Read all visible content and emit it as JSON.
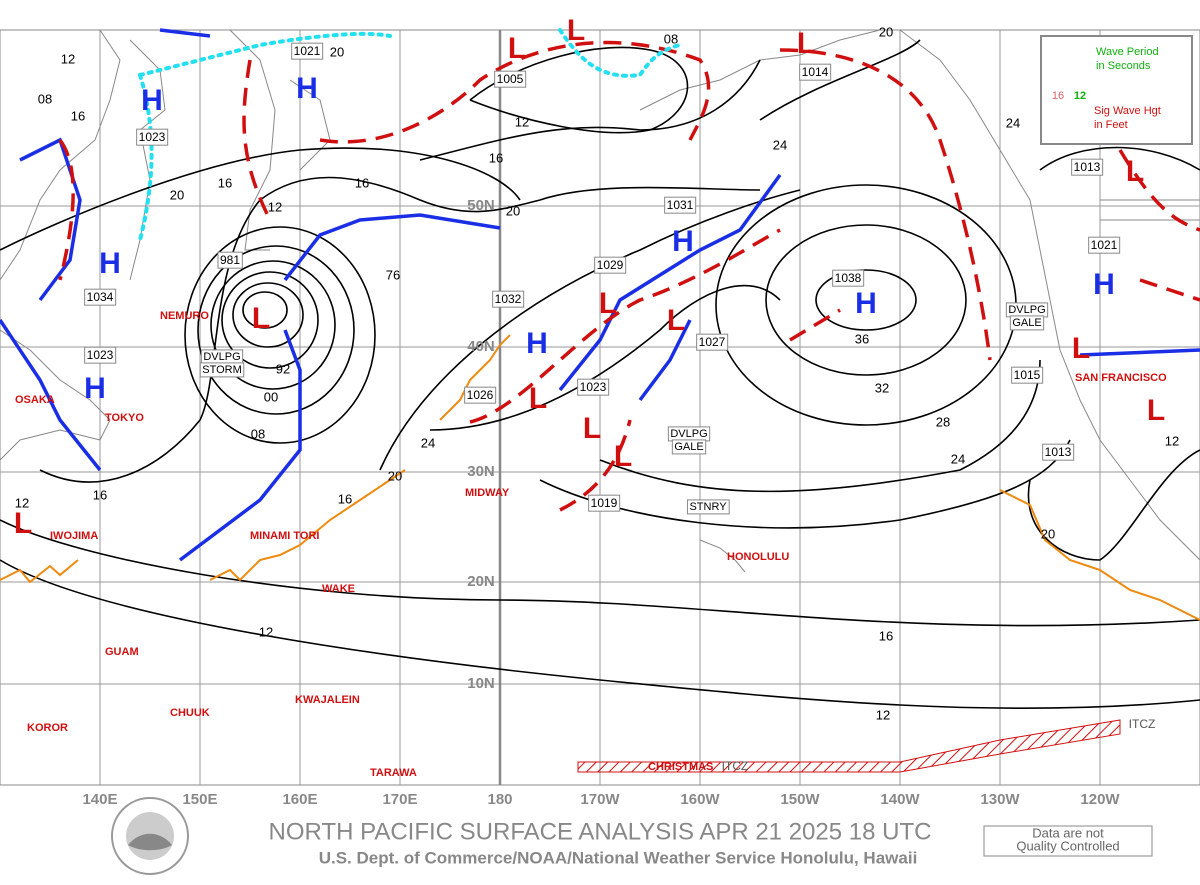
{
  "title": "NORTH PACIFIC SURFACE ANALYSIS APR 21 2025 18 UTC",
  "subtitle": "U.S. Dept. of Commerce/NOAA/National Weather Service Honolulu, Hawaii",
  "disclaimer": [
    "Data are not",
    "Quality Controlled"
  ],
  "legend": {
    "period_text": [
      "Wave Period",
      "in Seconds"
    ],
    "height_text": [
      "Sig Wave Hgt",
      "in Feet"
    ],
    "sample_height": 16,
    "sample_period": 12
  },
  "longitudes": [
    "140E",
    "150E",
    "160E",
    "170E",
    180,
    "170W",
    "160W",
    "150W",
    "140W",
    "130W",
    "120W"
  ],
  "latitudes": [
    "50N",
    "40N",
    "30N",
    "20N",
    "10N"
  ],
  "places": [
    "OSAKA",
    "TOKYO",
    "NEMURO",
    "IWOJIMA",
    "MINAMI TORI",
    "MIDWAY",
    "WAKE",
    "GUAM",
    "KWAJALEIN",
    "CHUUK",
    "KOROR",
    "TARAWA",
    "HONOLULU",
    "SAN FRANCISCO",
    "CHRISTMAS"
  ],
  "highs": [
    "H",
    "H",
    "H",
    "H",
    "H",
    "H",
    "H",
    "H"
  ],
  "lows": [
    "L",
    "L",
    "L",
    "L",
    "L",
    "L",
    "L",
    "L",
    "L",
    "L",
    "L",
    "L",
    "L"
  ],
  "center_pressures": [
    1021,
    1005,
    1023,
    981,
    1034,
    1023,
    1032,
    1029,
    1031,
    1038,
    1027,
    1026,
    1023,
    1019,
    1013,
    1021,
    1015,
    1013,
    1014
  ],
  "warnings": [
    [
      "DVLPG",
      "STORM"
    ],
    [
      "DVLPG",
      "GALE"
    ],
    [
      "DVLPG",
      "GALE"
    ],
    [
      "STNRY"
    ]
  ],
  "isobar_labels": [
    12,
    "08",
    16,
    20,
    16,
    12,
    16,
    76,
    92,
    "00",
    "08",
    16,
    12,
    20,
    24,
    16,
    12,
    16,
    20,
    "08",
    20,
    24,
    24,
    36,
    32,
    28,
    24,
    20,
    16,
    12,
    12,
    12,
    20
  ],
  "itcz": [
    "ITCZ",
    "ITCZ"
  ]
}
